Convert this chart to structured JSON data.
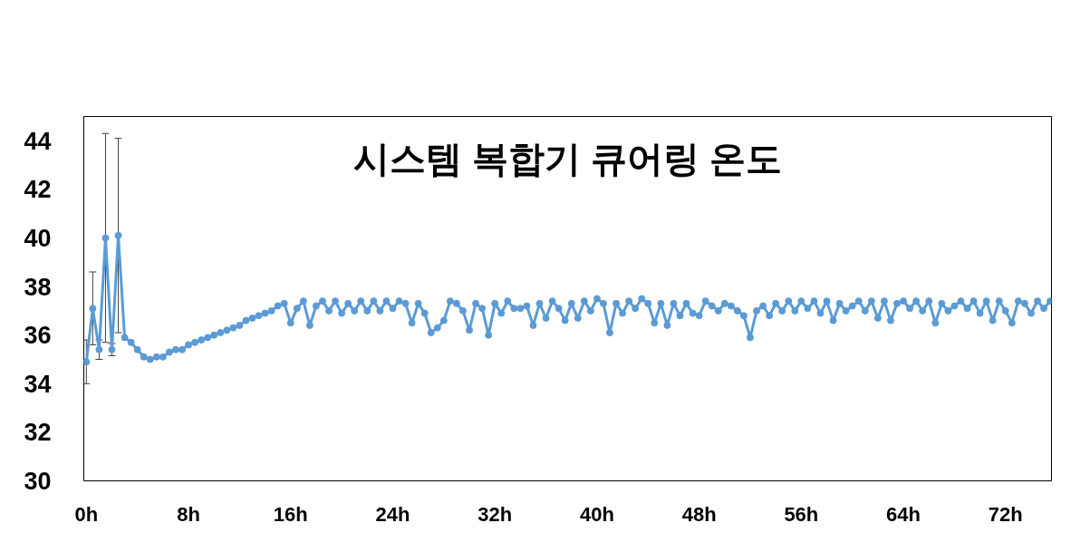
{
  "chart_data": {
    "type": "line",
    "title": "시스템 복합기 큐어링 온도",
    "x": [
      0,
      0.5,
      1,
      1.5,
      2,
      2.5,
      3,
      3.5,
      4,
      4.5,
      5,
      5.5,
      6,
      6.5,
      7,
      7.5,
      8,
      8.5,
      9,
      9.5,
      10,
      10.5,
      11,
      11.5,
      12,
      12.5,
      13,
      13.5,
      14,
      14.5,
      15,
      15.5,
      16,
      16.5,
      17,
      17.5,
      18,
      18.5,
      19,
      19.5,
      20,
      20.5,
      21,
      21.5,
      22,
      22.5,
      23,
      23.5,
      24,
      24.5,
      25,
      25.5,
      26,
      26.5,
      27,
      27.5,
      28,
      28.5,
      29,
      29.5,
      30,
      30.5,
      31,
      31.5,
      32,
      32.5,
      33,
      33.5,
      34,
      34.5,
      35,
      35.5,
      36,
      36.5,
      37,
      37.5,
      38,
      38.5,
      39,
      39.5,
      40,
      40.5,
      41,
      41.5,
      42,
      42.5,
      43,
      43.5,
      44,
      44.5,
      45,
      45.5,
      46,
      46.5,
      47,
      47.5,
      48,
      48.5,
      49,
      49.5,
      50,
      50.5,
      51,
      51.5,
      52,
      52.5,
      53,
      53.5,
      54,
      54.5,
      55,
      55.5,
      56,
      56.5,
      57,
      57.5,
      58,
      58.5,
      59,
      59.5,
      60,
      60.5,
      61,
      61.5,
      62,
      62.5,
      63,
      63.5,
      64,
      64.5,
      65,
      65.5,
      66,
      66.5,
      67,
      67.5,
      68,
      68.5,
      69,
      69.5,
      70,
      70.5,
      71,
      71.5,
      72,
      72.5,
      73,
      73.5,
      74,
      74.5,
      75,
      75.5
    ],
    "series": [
      {
        "color": "#5b9bd5",
        "values": [
          34.9,
          37.1,
          35.4,
          40.0,
          35.4,
          40.1,
          35.9,
          35.7,
          35.4,
          35.1,
          35.0,
          35.1,
          35.1,
          35.3,
          35.4,
          35.4,
          35.6,
          35.7,
          35.8,
          35.9,
          36.0,
          36.1,
          36.2,
          36.3,
          36.4,
          36.6,
          36.7,
          36.8,
          36.9,
          37.0,
          37.2,
          37.3,
          36.5,
          37.1,
          37.4,
          36.4,
          37.2,
          37.4,
          37.0,
          37.4,
          36.9,
          37.3,
          37.0,
          37.4,
          37.0,
          37.4,
          37.0,
          37.4,
          37.1,
          37.4,
          37.3,
          36.5,
          37.3,
          36.9,
          36.1,
          36.3,
          36.6,
          37.4,
          37.3,
          37.0,
          36.2,
          37.3,
          37.1,
          36.0,
          37.3,
          36.9,
          37.4,
          37.1,
          37.1,
          37.2,
          36.4,
          37.3,
          36.7,
          37.4,
          37.1,
          36.6,
          37.3,
          36.7,
          37.4,
          37.0,
          37.5,
          37.3,
          36.1,
          37.3,
          36.9,
          37.4,
          37.1,
          37.5,
          37.3,
          36.5,
          37.3,
          36.4,
          37.3,
          36.8,
          37.3,
          36.9,
          36.8,
          37.4,
          37.2,
          37.0,
          37.3,
          37.2,
          37.0,
          36.8,
          35.9,
          37.0,
          37.2,
          36.8,
          37.3,
          37.0,
          37.4,
          37.0,
          37.4,
          37.1,
          37.4,
          36.9,
          37.4,
          36.6,
          37.3,
          37.0,
          37.2,
          37.4,
          37.0,
          37.4,
          36.7,
          37.4,
          36.6,
          37.3,
          37.4,
          37.1,
          37.4,
          37.0,
          37.4,
          36.5,
          37.3,
          37.0,
          37.2,
          37.4,
          37.1,
          37.4,
          36.9,
          37.4,
          36.6,
          37.4,
          37.0,
          36.5,
          37.4,
          37.3,
          36.9,
          37.4,
          37.1,
          37.4
        ],
        "errors": [
          0.9,
          1.5,
          0.4,
          4.3,
          0.25,
          4.0,
          null,
          null,
          null,
          null,
          null,
          null,
          null,
          null,
          null,
          null,
          null,
          null,
          null,
          null,
          null,
          null,
          null,
          null,
          null,
          null,
          null,
          null,
          null,
          null,
          null,
          null,
          null,
          null,
          null,
          null,
          null,
          null,
          null,
          null,
          null,
          null,
          null,
          null,
          null,
          null,
          null,
          null,
          null,
          null,
          null,
          null,
          null,
          null,
          null,
          null,
          null,
          null,
          null,
          null,
          null,
          null,
          null,
          null,
          null,
          null,
          null,
          null,
          null,
          null,
          null,
          null,
          null,
          null,
          null,
          null,
          null,
          null,
          null,
          null,
          null,
          null,
          null,
          null,
          null,
          null,
          null,
          null,
          null,
          null,
          null,
          null,
          null,
          null,
          null,
          null,
          null,
          null,
          null,
          null,
          null,
          null,
          null,
          null,
          null,
          null,
          null,
          null,
          null,
          null,
          null,
          null,
          null,
          null,
          null,
          null,
          null,
          null,
          null,
          null,
          null,
          null,
          null,
          null,
          null,
          null,
          null,
          null,
          null,
          null,
          null,
          null,
          null,
          null,
          null,
          null,
          null,
          null,
          null,
          null,
          null,
          null,
          null,
          null,
          null,
          null,
          null,
          null,
          null,
          null,
          null,
          null
        ]
      }
    ],
    "xlim": [
      -0.2,
      75.6
    ],
    "xticks": [
      {
        "value": 0,
        "label": "0h"
      },
      {
        "value": 8,
        "label": "8h"
      },
      {
        "value": 16,
        "label": "16h"
      },
      {
        "value": 24,
        "label": "24h"
      },
      {
        "value": 32,
        "label": "32h"
      },
      {
        "value": 40,
        "label": "40h"
      },
      {
        "value": 48,
        "label": "48h"
      },
      {
        "value": 56,
        "label": "56h"
      },
      {
        "value": 64,
        "label": "64h"
      },
      {
        "value": 72,
        "label": "72h"
      }
    ],
    "ylim": [
      30,
      45
    ],
    "yticks": [
      30,
      32,
      34,
      36,
      38,
      40,
      42,
      44
    ],
    "grid": false,
    "marker": "circle",
    "line_style": "solid"
  }
}
